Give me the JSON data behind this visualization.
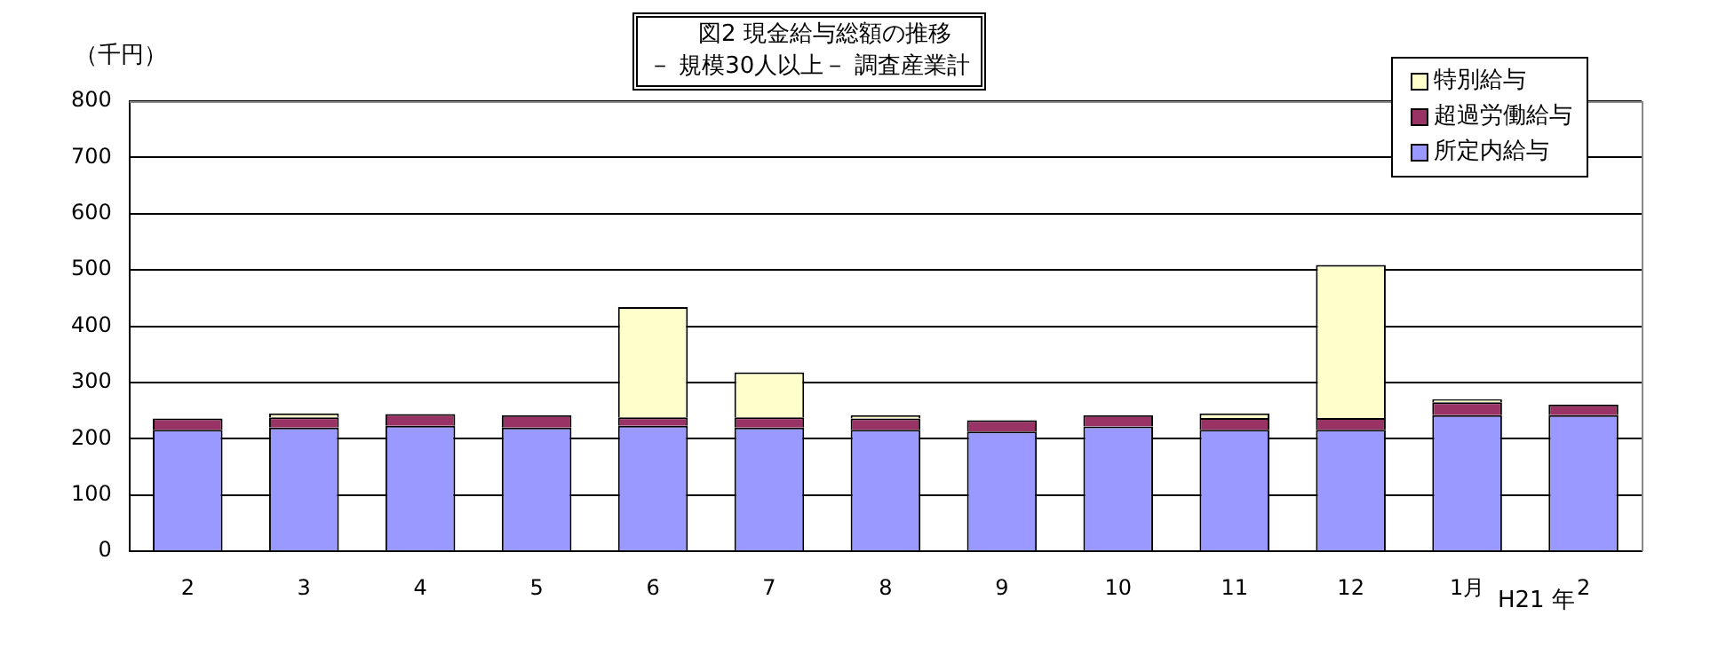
{
  "chart_data": {
    "type": "bar",
    "title": "図2  現金給与総額の推移",
    "subtitle": "－ 規模30人以上－  調査産業計",
    "ylabel": "（千円）",
    "categories": [
      "2",
      "3",
      "4",
      "5",
      "6",
      "7",
      "8",
      "9",
      "10",
      "11",
      "12",
      "1月",
      "2"
    ],
    "stacked": true,
    "series": [
      {
        "name": "所定内給与",
        "color": "#9999ff",
        "values": [
          216,
          220,
          223,
          220,
          223,
          220,
          216,
          213,
          222,
          216,
          216,
          242,
          242
        ]
      },
      {
        "name": "超過労働給与",
        "color": "#993366",
        "values": [
          20,
          18,
          21,
          22,
          15,
          18,
          20,
          20,
          20,
          21,
          21,
          23,
          19
        ]
      },
      {
        "name": "特別給与",
        "color": "#ffffcc",
        "values": [
          0,
          7,
          null,
          0,
          196,
          80,
          6,
          0,
          0,
          8,
          272,
          5,
          null
        ]
      }
    ],
    "annotations": [
      "H21 年"
    ],
    "ylim": [
      0,
      800
    ],
    "yticks": [
      0,
      100,
      200,
      300,
      400,
      500,
      600,
      700,
      800
    ],
    "grid": "y",
    "legend": "top right"
  }
}
